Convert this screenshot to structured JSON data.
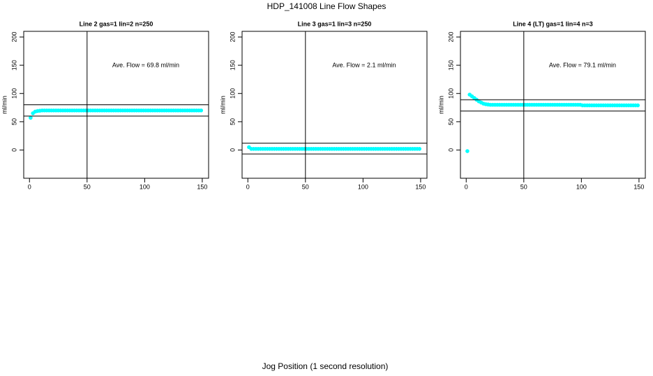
{
  "title": "HDP_141008  Line Flow Shapes",
  "xlabel": "Jog Position (1 second resolution)",
  "chart_data": [
    {
      "type": "scatter",
      "title": "Line 2 gas=1 lin=2 n=250",
      "ylabel": "ml/min",
      "annotation": "Ave. Flow =  69.8  ml/min",
      "xlim": [
        -5,
        155.5
      ],
      "ylim": [
        -50,
        210
      ],
      "xticks": [
        0,
        50,
        100,
        150
      ],
      "yticks": [
        0,
        50,
        100,
        150,
        200
      ],
      "hlines": [
        80,
        60
      ],
      "vlines": [
        50
      ],
      "series": [
        {
          "color": "#00ffff",
          "x": [
            1,
            3,
            5,
            7,
            9,
            11,
            13,
            15,
            17,
            19,
            21,
            23,
            25,
            27,
            29,
            31,
            33,
            35,
            37,
            39,
            41,
            43,
            45,
            47,
            49,
            51,
            53,
            55,
            57,
            59,
            61,
            63,
            65,
            67,
            69,
            71,
            73,
            75,
            77,
            79,
            81,
            83,
            85,
            87,
            89,
            91,
            93,
            95,
            97,
            99,
            101,
            103,
            105,
            107,
            109,
            111,
            113,
            115,
            117,
            119,
            121,
            123,
            125,
            127,
            129,
            131,
            133,
            135,
            137,
            139,
            141,
            143,
            145,
            147,
            149
          ],
          "values": [
            57,
            65,
            68,
            69,
            69.5,
            70,
            70,
            70,
            70,
            70,
            70,
            70,
            70,
            70,
            70,
            70,
            70,
            70,
            70,
            70,
            70,
            70,
            70,
            70,
            70,
            70,
            70,
            70,
            70,
            70,
            70,
            70,
            70,
            70,
            70,
            70,
            70,
            70,
            70,
            70,
            70,
            70,
            70,
            70,
            70,
            70,
            70,
            70,
            70,
            70,
            70,
            70,
            70,
            70,
            70,
            70,
            70,
            70,
            70,
            70,
            70,
            70,
            70,
            70,
            70,
            70,
            70,
            70,
            70,
            70,
            70,
            70,
            70,
            70,
            70
          ]
        }
      ]
    },
    {
      "type": "scatter",
      "title": "Line 3 gas=1 lin=3 n=250",
      "ylabel": "ml/min",
      "annotation": "Ave. Flow =  2.1  ml/min",
      "xlim": [
        -5,
        155.5
      ],
      "ylim": [
        -50,
        210
      ],
      "xticks": [
        0,
        50,
        100,
        150
      ],
      "yticks": [
        0,
        50,
        100,
        150,
        200
      ],
      "hlines": [
        12,
        -7
      ],
      "vlines": [
        50
      ],
      "series": [
        {
          "color": "#00ffff",
          "x": [
            1,
            3,
            5,
            7,
            9,
            11,
            13,
            15,
            17,
            19,
            21,
            23,
            25,
            27,
            29,
            31,
            33,
            35,
            37,
            39,
            41,
            43,
            45,
            47,
            49,
            51,
            53,
            55,
            57,
            59,
            61,
            63,
            65,
            67,
            69,
            71,
            73,
            75,
            77,
            79,
            81,
            83,
            85,
            87,
            89,
            91,
            93,
            95,
            97,
            99,
            101,
            103,
            105,
            107,
            109,
            111,
            113,
            115,
            117,
            119,
            121,
            123,
            125,
            127,
            129,
            131,
            133,
            135,
            137,
            139,
            141,
            143,
            145,
            147,
            149
          ],
          "values": [
            5,
            2,
            2,
            2,
            2,
            2,
            2,
            2,
            2,
            2,
            2,
            2,
            2,
            2,
            2,
            2,
            2,
            2,
            2,
            2,
            2,
            2,
            2,
            2,
            2,
            2,
            2,
            2,
            2,
            2,
            2,
            2,
            2,
            2,
            2,
            2,
            2,
            2,
            2,
            2,
            2,
            2,
            2,
            2,
            2,
            2,
            2,
            2,
            2,
            2,
            2,
            2,
            2,
            2,
            2,
            2,
            2,
            2,
            2,
            2,
            2,
            2,
            2,
            2,
            2,
            2,
            2,
            2,
            2,
            2,
            2,
            2,
            2,
            2,
            2
          ]
        }
      ]
    },
    {
      "type": "scatter",
      "title": "Line 4 (LT) gas=1 lin=4 n=3",
      "ylabel": "ml/min",
      "annotation": "Ave. Flow =  79.1  ml/min",
      "xlim": [
        -5,
        155.5
      ],
      "ylim": [
        -50,
        210
      ],
      "xticks": [
        0,
        50,
        100,
        150
      ],
      "yticks": [
        0,
        50,
        100,
        150,
        200
      ],
      "hlines": [
        89,
        69
      ],
      "vlines": [
        50
      ],
      "series": [
        {
          "color": "#00ffff",
          "x": [
            1,
            3,
            5,
            7,
            9,
            11,
            13,
            15,
            17,
            19,
            21,
            23,
            25,
            27,
            29,
            31,
            33,
            35,
            37,
            39,
            41,
            43,
            45,
            47,
            49,
            51,
            53,
            55,
            57,
            59,
            61,
            63,
            65,
            67,
            69,
            71,
            73,
            75,
            77,
            79,
            81,
            83,
            85,
            87,
            89,
            91,
            93,
            95,
            97,
            99,
            101,
            103,
            105,
            107,
            109,
            111,
            113,
            115,
            117,
            119,
            121,
            123,
            125,
            127,
            129,
            131,
            133,
            135,
            137,
            139,
            141,
            143,
            145,
            147,
            149
          ],
          "values": [
            -2,
            98,
            95,
            92,
            89,
            86,
            84,
            82,
            81,
            80.5,
            80,
            80,
            80,
            80,
            80,
            80,
            80,
            80,
            80,
            80,
            80,
            80,
            80,
            80,
            80,
            80,
            80,
            80,
            80,
            80,
            80,
            80,
            80,
            80,
            80,
            80,
            80,
            80,
            80,
            80,
            80,
            80,
            80,
            80,
            80,
            80,
            80,
            80,
            80,
            80,
            79,
            79,
            79,
            79,
            79,
            79,
            79,
            79,
            79,
            79,
            79,
            79,
            79,
            79,
            79,
            79,
            79,
            79,
            79,
            79,
            79,
            79,
            79,
            79,
            79
          ]
        }
      ]
    }
  ]
}
